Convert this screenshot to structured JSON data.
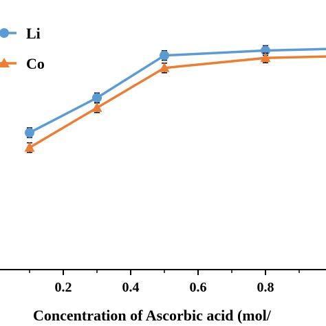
{
  "chart_data": {
    "type": "line",
    "xlabel": "Concentration of Ascorbic acid (mol/",
    "x_ticks": [
      "0.2",
      "0.4",
      "0.6",
      "0.8"
    ],
    "xlim": [
      0.1,
      1.1
    ],
    "ylim": [
      0,
      100
    ],
    "grid": false,
    "legend_position": "top-left",
    "series": [
      {
        "name": "Li",
        "color": "#5B9BD5",
        "marker": "circle",
        "x": [
          0.1,
          0.3,
          0.5,
          0.8,
          1.1
        ],
        "y": [
          55,
          69,
          86,
          88,
          89
        ]
      },
      {
        "name": "Co",
        "color": "#ED7D31",
        "marker": "triangle",
        "x": [
          0.1,
          0.3,
          0.5,
          0.8,
          1.1
        ],
        "y": [
          49,
          65,
          81,
          85,
          86
        ]
      }
    ]
  }
}
